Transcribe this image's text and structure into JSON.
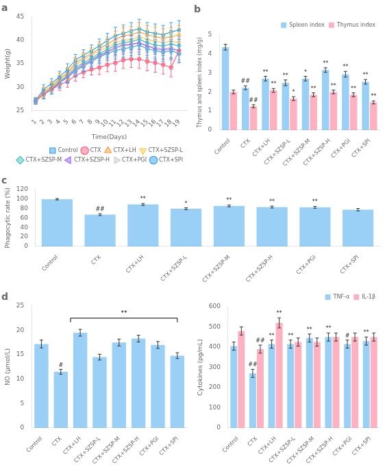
{
  "chart_data": [
    {
      "type": "line",
      "title": "a",
      "x": [
        1,
        2,
        3,
        4,
        5,
        6,
        7,
        8,
        9,
        10,
        11,
        12,
        13,
        14,
        15,
        16,
        17,
        18,
        19
      ],
      "xlim": [
        0.5,
        20
      ],
      "xticks": [
        1,
        2,
        3,
        4,
        5,
        6,
        7,
        8,
        9,
        10,
        11,
        12,
        13,
        14,
        15,
        16,
        17,
        18,
        19
      ],
      "ylim": [
        25,
        45
      ],
      "yticks": [
        25,
        30,
        35,
        40,
        45
      ],
      "xlabel": "Time(Days)",
      "ylabel": "Weight(g)",
      "legend": "lower right",
      "grid": false,
      "series": [
        {
          "name": "Control",
          "marker": "square",
          "values": [
            27.2,
            29.5,
            30.8,
            32.2,
            33.8,
            35.8,
            36.8,
            37.8,
            38.8,
            40.0,
            41.0,
            41.5,
            42.0,
            42.5,
            41.8,
            41.5,
            41.2,
            41.8,
            42.2
          ],
          "errors": [
            0.6,
            1.0,
            1.0,
            1.2,
            1.2,
            1.2,
            1.2,
            1.2,
            1.5,
            1.5,
            1.8,
            1.8,
            1.8,
            2.0,
            2.0,
            2.0,
            2.0,
            2.0,
            2.0
          ]
        },
        {
          "name": "CTX",
          "marker": "circle",
          "values": [
            27.0,
            28.5,
            29.5,
            30.5,
            31.2,
            32.5,
            33.2,
            33.8,
            34.2,
            34.8,
            35.2,
            35.8,
            36.0,
            36.0,
            35.5,
            35.2,
            34.8,
            34.2,
            37.8
          ],
          "errors": [
            0.6,
            1.0,
            1.0,
            1.2,
            1.2,
            1.2,
            1.2,
            1.2,
            1.5,
            1.5,
            1.8,
            1.8,
            1.8,
            2.0,
            2.0,
            2.0,
            2.0,
            2.0,
            2.5
          ]
        },
        {
          "name": "CTX+LH",
          "marker": "triangle_up",
          "values": [
            27.1,
            29.0,
            30.2,
            31.8,
            33.0,
            35.2,
            36.2,
            37.2,
            38.2,
            39.2,
            40.2,
            41.0,
            41.2,
            41.8,
            41.2,
            40.8,
            40.5,
            40.8,
            41.2
          ],
          "errors": [
            0.6,
            1.0,
            1.0,
            1.2,
            1.2,
            1.2,
            1.2,
            1.2,
            1.5,
            1.5,
            1.8,
            1.8,
            1.8,
            2.0,
            2.0,
            2.0,
            2.0,
            2.0,
            2.0
          ]
        },
        {
          "name": "CTX+SZSP-L",
          "marker": "triangle_down",
          "values": [
            27.0,
            28.8,
            30.0,
            31.5,
            32.8,
            34.8,
            35.8,
            36.8,
            37.8,
            38.5,
            39.5,
            40.0,
            40.2,
            40.8,
            40.2,
            39.8,
            39.5,
            39.8,
            39.5
          ],
          "errors": [
            0.6,
            1.0,
            1.0,
            1.2,
            1.2,
            1.2,
            1.2,
            1.2,
            1.5,
            1.5,
            1.8,
            1.8,
            1.8,
            2.0,
            2.0,
            2.0,
            2.0,
            2.0,
            2.0
          ]
        },
        {
          "name": "CTX+SZSP-M",
          "marker": "diamond",
          "values": [
            27.0,
            28.6,
            29.8,
            31.2,
            32.5,
            34.2,
            35.2,
            36.2,
            37.2,
            38.0,
            39.0,
            39.5,
            39.8,
            40.2,
            39.5,
            39.0,
            38.8,
            39.2,
            38.8
          ],
          "errors": [
            0.6,
            1.0,
            1.0,
            1.2,
            1.2,
            1.2,
            1.2,
            1.2,
            1.5,
            1.5,
            1.8,
            1.8,
            1.8,
            2.0,
            2.0,
            2.0,
            2.0,
            2.0,
            2.0
          ]
        },
        {
          "name": "CTX+SZSP-H",
          "marker": "triangle_left",
          "values": [
            27.0,
            28.5,
            29.5,
            31.0,
            32.2,
            33.8,
            34.8,
            35.8,
            36.8,
            37.5,
            38.5,
            39.0,
            39.2,
            39.5,
            38.8,
            38.2,
            38.0,
            38.2,
            37.8
          ],
          "errors": [
            0.6,
            1.0,
            1.0,
            1.2,
            1.2,
            1.2,
            1.2,
            1.2,
            1.5,
            1.5,
            1.8,
            1.8,
            1.8,
            2.0,
            2.0,
            2.0,
            2.0,
            2.0,
            2.0
          ]
        },
        {
          "name": "CTX+PGI",
          "marker": "triangle_right",
          "values": [
            27.0,
            28.5,
            29.5,
            31.0,
            32.0,
            33.8,
            34.8,
            35.8,
            36.8,
            37.5,
            38.2,
            38.8,
            39.0,
            39.5,
            38.8,
            38.5,
            38.2,
            38.5,
            37.8
          ],
          "errors": [
            0.6,
            1.0,
            1.0,
            1.2,
            1.2,
            1.2,
            1.2,
            1.2,
            1.5,
            1.5,
            1.8,
            1.8,
            1.8,
            2.0,
            2.0,
            2.0,
            2.0,
            2.0,
            2.0
          ]
        },
        {
          "name": "CTX+SPI",
          "marker": "circle",
          "values": [
            27.0,
            28.5,
            29.5,
            31.0,
            32.0,
            33.5,
            34.5,
            35.5,
            36.5,
            37.2,
            37.8,
            38.2,
            38.5,
            39.0,
            38.2,
            37.8,
            37.5,
            37.8,
            37.2
          ],
          "errors": [
            0.6,
            1.0,
            1.0,
            1.2,
            1.2,
            1.2,
            1.2,
            1.2,
            1.5,
            1.5,
            1.8,
            1.8,
            1.8,
            2.0,
            2.0,
            2.0,
            2.0,
            2.0,
            2.0
          ]
        }
      ]
    },
    {
      "type": "bar",
      "title": "b",
      "categories": [
        "Control",
        "CTX",
        "CTX+LH",
        "CTX+SZSP-L",
        "CTX+SZSP-M",
        "CTX+SZSP-H",
        "CTX+PGI",
        "CTX+SPI"
      ],
      "ylabel": "Thymus and spleen index (mg/g)",
      "ylim": [
        0,
        5
      ],
      "yticks": [
        0,
        1,
        2,
        3,
        4,
        5
      ],
      "legend": "upper right",
      "grid": false,
      "series": [
        {
          "name": "Spleen index",
          "values": [
            4.35,
            2.22,
            2.7,
            2.48,
            2.7,
            3.15,
            2.93,
            2.53
          ],
          "errors": [
            0.15,
            0.1,
            0.12,
            0.15,
            0.12,
            0.12,
            0.15,
            0.12
          ],
          "annotations": [
            null,
            "##",
            "**",
            "**",
            "*",
            "**",
            "**",
            "**"
          ]
        },
        {
          "name": "Thymus index",
          "values": [
            2.0,
            1.25,
            2.08,
            1.65,
            1.85,
            2.0,
            1.85,
            1.45
          ],
          "errors": [
            0.1,
            0.08,
            0.1,
            0.1,
            0.1,
            0.1,
            0.1,
            0.08
          ],
          "annotations": [
            null,
            "##",
            "**",
            "*",
            "**",
            "**",
            "**",
            "**"
          ]
        }
      ]
    },
    {
      "type": "bar",
      "title": "c",
      "categories": [
        "Control",
        "CTX",
        "CTX+LH",
        "CTX+SZSP-L",
        "CTX+SZSP-M",
        "CTX+SZSP-H",
        "CTX+PGI",
        "CTX+SPI"
      ],
      "values": [
        99.5,
        67.0,
        88.5,
        79.5,
        85.5,
        83.0,
        82.5,
        77.5
      ],
      "errors": [
        1.5,
        2.0,
        2.0,
        2.0,
        2.0,
        2.0,
        2.0,
        2.5
      ],
      "annotations": [
        null,
        "##",
        "**",
        "*",
        "**",
        "**",
        "**",
        null
      ],
      "ylabel": "Phagocytic rate (%)",
      "ylim": [
        0,
        120
      ],
      "yticks": [
        0,
        20,
        40,
        60,
        80,
        100,
        120
      ],
      "grid": false
    },
    {
      "type": "bar",
      "title": "d",
      "categories": [
        "Control",
        "CTX",
        "CTX+LH",
        "CTX+SZSP-L",
        "CTX+SZSP-M",
        "CTX+SZSP-H",
        "CTX+PGI",
        "CTX+SPI"
      ],
      "values": [
        17.2,
        11.5,
        19.5,
        14.5,
        17.5,
        18.3,
        17.0,
        14.8
      ],
      "errors": [
        0.8,
        0.5,
        0.7,
        0.6,
        0.7,
        0.7,
        0.7,
        0.6
      ],
      "annotations": [
        null,
        "#",
        null,
        null,
        null,
        null,
        null,
        null
      ],
      "bracket": {
        "from": "CTX",
        "to": "CTX+SPI",
        "y": 22.5,
        "text": "**"
      },
      "ylabel": "NO (μmol/L)",
      "ylim": [
        0,
        25
      ],
      "yticks": [
        0,
        5,
        10,
        15,
        20,
        25
      ],
      "grid": false
    },
    {
      "type": "bar",
      "categories": [
        "Control",
        "CTX",
        "CTX+LH",
        "CTX+SZSP-L",
        "CTX+SZSP-M",
        "CTX+SZSP-H",
        "CTX+PGI",
        "CTX+SPI"
      ],
      "ylabel": "Cytokines (pg/mL)",
      "ylim": [
        0,
        600
      ],
      "yticks": [
        0,
        100,
        200,
        300,
        400,
        500,
        600
      ],
      "legend": "upper right",
      "grid": false,
      "series": [
        {
          "name": "TNF-α",
          "values": [
            405,
            270,
            415,
            415,
            445,
            450,
            415,
            430
          ],
          "errors": [
            20,
            20,
            20,
            20,
            20,
            20,
            20,
            20
          ],
          "annotations": [
            null,
            "##",
            "**",
            "**",
            "**",
            "**",
            "#",
            "**"
          ]
        },
        {
          "name": "IL-1β",
          "values": [
            480,
            390,
            520,
            425,
            425,
            450,
            450,
            450
          ],
          "errors": [
            20,
            20,
            25,
            20,
            20,
            20,
            20,
            20
          ],
          "annotations": [
            null,
            "##",
            "**",
            null,
            null,
            null,
            null,
            null
          ]
        }
      ]
    }
  ]
}
